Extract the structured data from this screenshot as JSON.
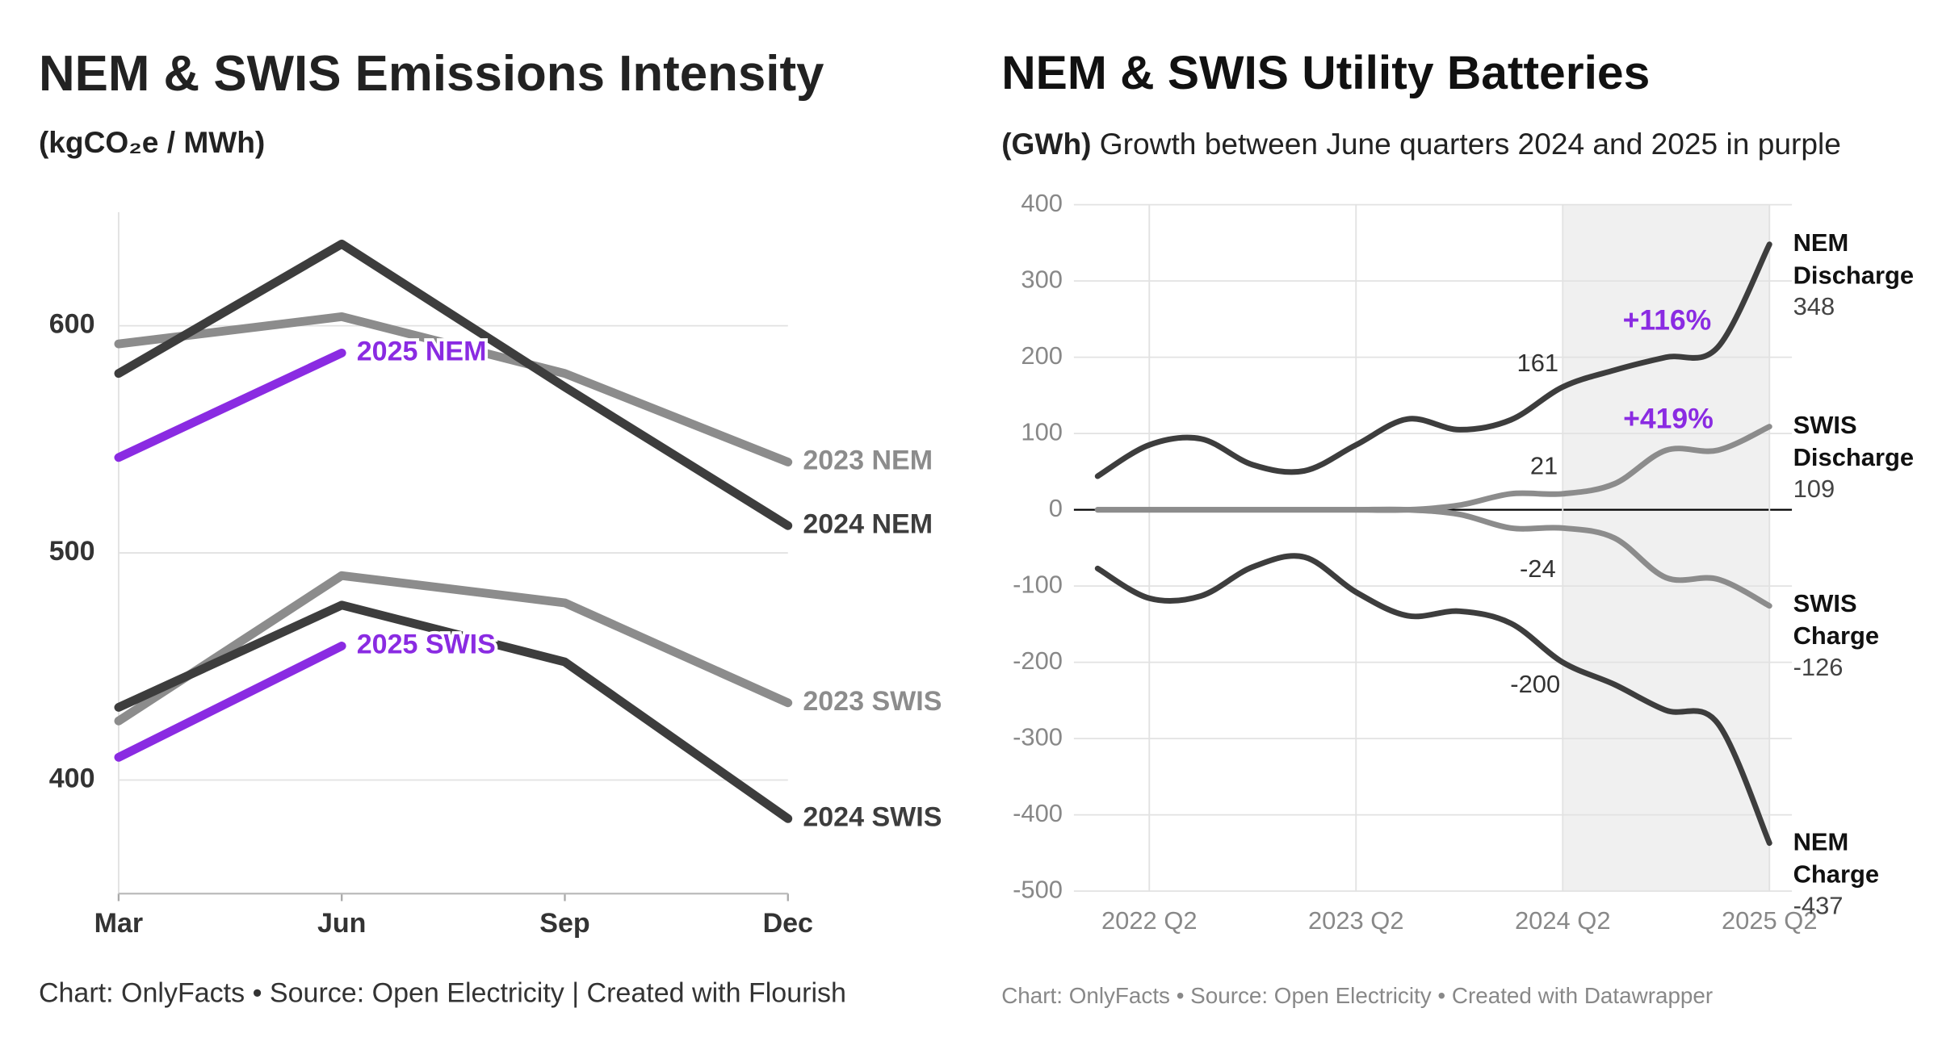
{
  "chart_data": [
    {
      "type": "line",
      "title": "NEM & SWIS Emissions Intensity",
      "subtitle": "(kgCO₂e / MWh)",
      "footer": "Chart: OnlyFacts • Source: Open Electricity | Created with Flourish",
      "categories": [
        "Mar",
        "Jun",
        "Sep",
        "Dec"
      ],
      "series": [
        {
          "name": "2023 NEM",
          "color": "#8c8c8c",
          "values": [
            592,
            604,
            579,
            540
          ]
        },
        {
          "name": "2024 NEM",
          "color": "#3d3d3d",
          "values": [
            579,
            636,
            573,
            512
          ]
        },
        {
          "name": "2025 NEM",
          "color": "#8a2be2",
          "values": [
            542,
            588,
            null,
            null
          ]
        },
        {
          "name": "2023 SWIS",
          "color": "#8c8c8c",
          "values": [
            426,
            490,
            478,
            434
          ]
        },
        {
          "name": "2024 SWIS",
          "color": "#3d3d3d",
          "values": [
            432,
            477,
            452,
            383
          ]
        },
        {
          "name": "2025 SWIS",
          "color": "#8a2be2",
          "values": [
            410,
            459,
            null,
            null
          ]
        }
      ],
      "ylim": [
        350,
        650
      ],
      "yticks": [
        400,
        500,
        600
      ],
      "grid": true
    },
    {
      "type": "line",
      "smooth": true,
      "title": "NEM & SWIS Utility Batteries",
      "y_unit": "(GWh)",
      "subtitle": "Growth between June quarters 2024 and 2025 in purple",
      "footer": "Chart: OnlyFacts • Source: Open Electricity • Created with Datawrapper",
      "categories": [
        null,
        "2022 Q2",
        null,
        null,
        null,
        "2023 Q2",
        null,
        null,
        null,
        "2024 Q2",
        null,
        null,
        null,
        "2025 Q2"
      ],
      "highlight_range": [
        "2024 Q2",
        "2025 Q2"
      ],
      "series": [
        {
          "name": "NEM Discharge",
          "color": "#3d3d3d",
          "values": [
            44,
            85,
            93,
            59,
            51,
            85,
            119,
            105,
            118,
            161,
            183,
            200,
            213,
            348
          ]
        },
        {
          "name": "SWIS Discharge",
          "color": "#8c8c8c",
          "values": [
            0,
            0,
            0,
            0,
            0,
            0,
            0,
            6,
            21,
            21,
            34,
            78,
            78,
            109
          ]
        },
        {
          "name": "SWIS Charge",
          "color": "#8c8c8c",
          "values": [
            0,
            0,
            0,
            0,
            0,
            0,
            0,
            -6,
            -24,
            -24,
            -37,
            -89,
            -91,
            -126
          ]
        },
        {
          "name": "NEM Charge",
          "color": "#3d3d3d",
          "values": [
            -77,
            -116,
            -113,
            -75,
            -62,
            -108,
            -139,
            -133,
            -149,
            -200,
            -229,
            -263,
            -280,
            -437
          ]
        }
      ],
      "annotations": [
        {
          "text": "+116%",
          "color": "#8a2be2"
        },
        {
          "text": "+419%",
          "color": "#8a2be2"
        }
      ],
      "ylim": [
        -500,
        400
      ],
      "yticks": [
        -500,
        -400,
        -300,
        -200,
        -100,
        0,
        100,
        200,
        300,
        400
      ],
      "grid": true
    }
  ]
}
